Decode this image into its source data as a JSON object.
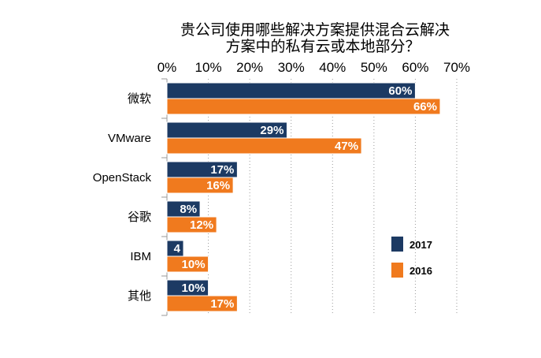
{
  "chart_data": {
    "type": "bar",
    "orientation": "horizontal",
    "title": [
      "贵公司使用哪些解决方案提供混合云解决",
      "方案中的私有云或本地部分？"
    ],
    "xlabel": "",
    "ylabel": "",
    "xlim": [
      0,
      70
    ],
    "ticks": [
      "0%",
      "10%",
      "20%",
      "30%",
      "40%",
      "50%",
      "60%",
      "70%"
    ],
    "categories": [
      "微软",
      "VMware",
      "OpenStack",
      "谷歌",
      "IBM",
      "其他"
    ],
    "series": [
      {
        "name": "2017",
        "color": "#1c3a63",
        "values": [
          60,
          29,
          17,
          8,
          4,
          10
        ],
        "labels": [
          "60%",
          "29%",
          "17%",
          "8%",
          "4",
          "10%"
        ]
      },
      {
        "name": "2016",
        "color": "#f07a1e",
        "values": [
          66,
          47,
          16,
          12,
          10,
          17
        ],
        "labels": [
          "66%",
          "47%",
          "16%",
          "12%",
          "10%",
          "17%"
        ]
      }
    ],
    "legend_position": "right",
    "grid": true
  }
}
